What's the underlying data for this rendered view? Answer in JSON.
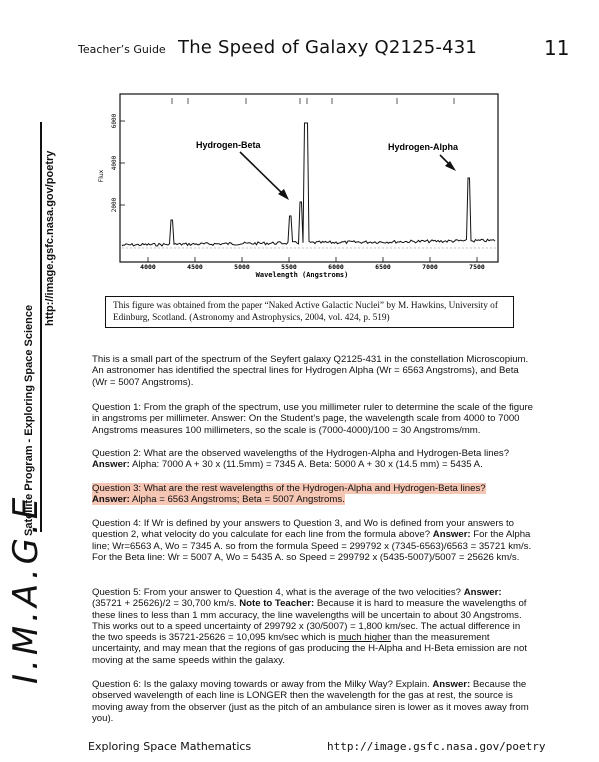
{
  "header": {
    "label": "Teacher’s Guide",
    "title": "The Speed of Galaxy Q2125-431",
    "page_number": "11"
  },
  "sidebar": {
    "logo": "I.M.A.G.E",
    "program": "Satellite Program  -  Exploring Space Science",
    "url": "http://image.gsfc.nasa.gov/poetry"
  },
  "figure": {
    "ylabel": "Flux",
    "xlabel": "Wavelength (Angstroms)",
    "y_ticks": [
      "2000",
      "4000",
      "6000"
    ],
    "x_ticks": [
      "4000",
      "4500",
      "5000",
      "5500",
      "6000",
      "6500",
      "7000",
      "7500"
    ],
    "annotation_beta": "Hydrogen-Beta",
    "annotation_alpha": "Hydrogen-Alpha"
  },
  "caption": "This figure was obtained from the paper “Naked Active Galactic Nuclei” by M. Hawkins, University of Edinburg, Scotland. (Astronomy and Astrophysics, 2004, vol. 424, p. 519)",
  "intro": "This is a small part of the spectrum of the Seyfert galaxy Q2125-431 in the constellation Microscopium. An astronomer has identified the spectral lines for Hydrogen Alpha (Wr =  6563 Angstroms), and Beta (Wr =  5007 Angstroms).",
  "q1": "Question 1:  From the graph of the spectrum, use you millimeter ruler to determine the scale of the figure in angstroms per millimeter. Answer: On the Student’s page, the wavelength scale from 4000 to 7000 Angstroms measures 100 millimeters, so the scale is (7000-4000)/100 = 30 Angstroms/mm.",
  "q2": {
    "question": "Question 2: What are the observed wavelengths of the Hydrogen-Alpha and Hydrogen-Beta lines?",
    "answer_label": "Answer:",
    "answer": " Alpha:   7000 A + 30 x (11.5mm) = 7345 A.   Beta:  5000 A + 30 x (14.5 mm) = 5435 A."
  },
  "q3": {
    "question": "Question 3:  What are the rest wavelengths of the Hydrogen-Alpha and Hydrogen-Beta lines?",
    "answer_label": "Answer:",
    "answer": "  Alpha = 6563 Angstroms; Beta = 5007 Angstroms."
  },
  "q4": {
    "question": "Question 4: If Wr is defined by your answers to Question 3, and Wo is defined from your answers to question 2, what velocity do you calculate for each line from the formula above?",
    "answer_label": "Answer:",
    "answer": " For the Alpha line; Wr=6563 A, Wo = 7345 A. so from the formula Speed = 299792 x (7345-6563)/6563 = 35721 km/s. For the Beta line:  Wr = 5007 A, Wo = 5435 A. so Speed = 299792 x (5435-5007)/5007 = 25626 km/s."
  },
  "q5": {
    "question": "Question 5: From your answer to Question 4, what is the average of the two velocities?",
    "answer_label": "Answer:",
    "answer": " (35721 + 25626)/2 = 30,700 km/s.",
    "note_label": "Note to Teacher:",
    "note_a": " Because it is hard to measure the wavelengths of these lines to less than 1 mm accuracy, the line wavelengths will be uncertain to about 30 Angstroms. This works out to a speed uncertainty of 299792 x (30/5007) = 1,800 km/sec. The actual difference in the two speeds is 35721-25626 = 10,095 km/sec  which is ",
    "note_underlined": "much higher",
    "note_b": " than the measurement uncertainty, and may mean that the regions of gas producing the H-Alpha and H-Beta emission are not moving at the same speeds within the galaxy."
  },
  "q6": {
    "question": "Question 6: Is the galaxy moving towards or away from the Milky Way? Explain.",
    "answer_label": "Answer:",
    "answer": " Because the observed wavelength of each line is LONGER then the wavelength for the gas at rest, the source is moving away from the observer (just as the pitch of an ambulance siren is lower as it moves away from you)."
  },
  "footer": {
    "left": "Exploring Space Mathematics",
    "right": "http://image.gsfc.nasa.gov/poetry"
  },
  "colors": {
    "highlight": "#f5c6b4"
  }
}
